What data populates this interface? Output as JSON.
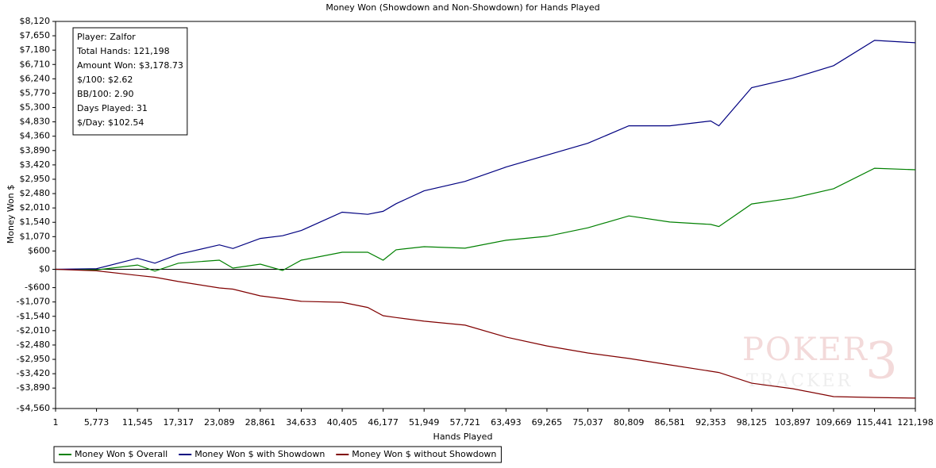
{
  "chart_data": {
    "type": "line",
    "title": "Money Won (Showdown and Non-Showdown) for Hands Played",
    "x_label": "Hands Played",
    "y_label": "Money Won $",
    "info_box": [
      "Player: Zalfor",
      "Total Hands: 121,198",
      "Amount Won: $3,178.73",
      "$/100: $2.62",
      "BB/100: 2.90",
      "Days Played: 31",
      "$/Day: $102.54"
    ],
    "watermark": [
      "POKER",
      "TRACKER",
      "3"
    ],
    "x": [
      1,
      5773,
      11545,
      14000,
      17317,
      23089,
      25000,
      28861,
      32000,
      34633,
      40405,
      44000,
      46177,
      48000,
      51949,
      57721,
      63493,
      69265,
      75037,
      80809,
      86581,
      92353,
      93500,
      98125,
      103897,
      109669,
      115441,
      121198
    ],
    "series": [
      {
        "name": "Money Won $ Overall",
        "color": "#008000",
        "values": [
          0,
          -20,
          140,
          -60,
          200,
          300,
          40,
          170,
          -40,
          300,
          560,
          560,
          300,
          640,
          740,
          690,
          950,
          1080,
          1360,
          1750,
          1550,
          1470,
          1400,
          2140,
          2330,
          2640,
          3310,
          3260
        ]
      },
      {
        "name": "Money Won $ with Showdown",
        "color": "#000080",
        "values": [
          0,
          20,
          360,
          200,
          490,
          800,
          680,
          1010,
          1100,
          1270,
          1870,
          1800,
          1900,
          2150,
          2570,
          2880,
          3350,
          3740,
          4130,
          4700,
          4700,
          4860,
          4700,
          5950,
          6260,
          6670,
          7500,
          7420
        ]
      },
      {
        "name": "Money Won $ without Showdown",
        "color": "#800000",
        "values": [
          0,
          -50,
          -200,
          -260,
          -400,
          -610,
          -650,
          -870,
          -960,
          -1050,
          -1080,
          -1250,
          -1520,
          -1580,
          -1700,
          -1830,
          -2220,
          -2510,
          -2740,
          -2920,
          -3130,
          -3340,
          -3380,
          -3730,
          -3910,
          -4170,
          -4200,
          -4220
        ]
      }
    ],
    "xlim": [
      1,
      121198
    ],
    "xticks": [
      1,
      {
        "value": 5773,
        "label": "5,773"
      },
      {
        "value": 11545,
        "label": "11,545"
      },
      {
        "value": 17317,
        "label": "17,317"
      },
      {
        "value": 23089,
        "label": "23,089"
      },
      {
        "value": 28861,
        "label": "28,861"
      },
      {
        "value": 34633,
        "label": "34,633"
      },
      {
        "value": 40405,
        "label": "40,405"
      },
      {
        "value": 46177,
        "label": "46,177"
      },
      {
        "value": 51949,
        "label": "51,949"
      },
      {
        "value": 57721,
        "label": "57,721"
      },
      {
        "value": 63493,
        "label": "63,493"
      },
      {
        "value": 69265,
        "label": "69,265"
      },
      {
        "value": 75037,
        "label": "75,037"
      },
      {
        "value": 80809,
        "label": "80,809"
      },
      {
        "value": 86581,
        "label": "86,581"
      },
      {
        "value": 92353,
        "label": "92,353"
      },
      {
        "value": 98125,
        "label": "98,125"
      },
      {
        "value": 103897,
        "label": "103,897"
      },
      {
        "value": 109669,
        "label": "109,669"
      },
      {
        "value": 115441,
        "label": "115,441"
      },
      {
        "value": 121198,
        "label": "121,198"
      }
    ],
    "ylim": [
      -4560,
      8120
    ],
    "yticks": [
      {
        "value": 8120,
        "label": "$8,120"
      },
      {
        "value": 7650,
        "label": "$7,650"
      },
      {
        "value": 7180,
        "label": "$7,180"
      },
      {
        "value": 6710,
        "label": "$6,710"
      },
      {
        "value": 6240,
        "label": "$6,240"
      },
      {
        "value": 5770,
        "label": "$5,770"
      },
      {
        "value": 5300,
        "label": "$5,300"
      },
      {
        "value": 4830,
        "label": "$4,830"
      },
      {
        "value": 4360,
        "label": "$4,360"
      },
      {
        "value": 3890,
        "label": "$3,890"
      },
      {
        "value": 3420,
        "label": "$3,420"
      },
      {
        "value": 2950,
        "label": "$2,950"
      },
      {
        "value": 2480,
        "label": "$2,480"
      },
      {
        "value": 2010,
        "label": "$2,010"
      },
      {
        "value": 1540,
        "label": "$1,540"
      },
      {
        "value": 1070,
        "label": "$1,070"
      },
      {
        "value": 600,
        "label": "$600"
      },
      {
        "value": 0,
        "label": "$0"
      },
      {
        "value": -600,
        "label": "-$600"
      },
      {
        "value": -1070,
        "label": "-$1,070"
      },
      {
        "value": -1540,
        "label": "-$1,540"
      },
      {
        "value": -2010,
        "label": "-$2,010"
      },
      {
        "value": -2480,
        "label": "-$2,480"
      },
      {
        "value": -2950,
        "label": "-$2,950"
      },
      {
        "value": -3420,
        "label": "-$3,420"
      },
      {
        "value": -3890,
        "label": "-$3,890"
      },
      {
        "value": -4560,
        "label": "-$4,560"
      }
    ],
    "grid": false
  }
}
